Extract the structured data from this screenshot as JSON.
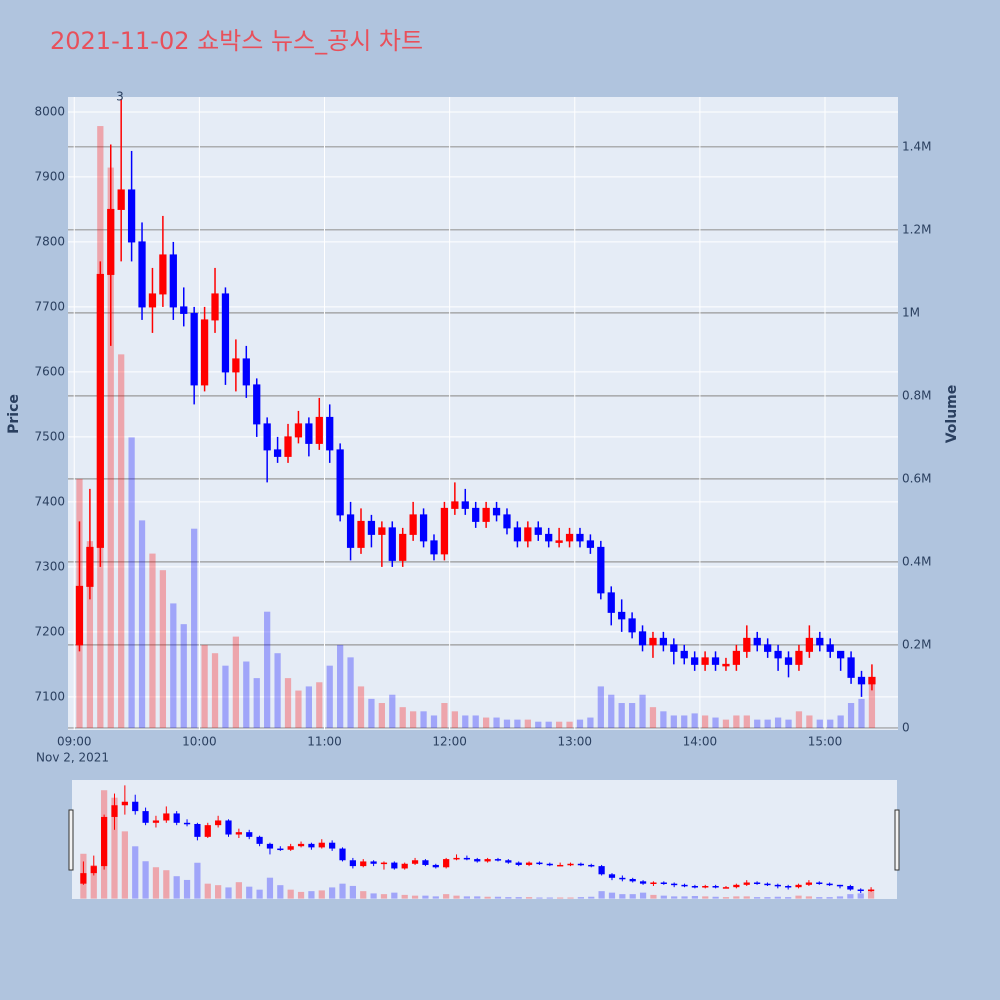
{
  "chart_data": {
    "type": "candlestick",
    "title": "2021-11-02 쇼박스 뉴스_공시 차트",
    "y_label": "Price",
    "y2_label": "Volume",
    "x_date_label": "Nov 2, 2021",
    "annotation": "3",
    "increasing_color": "#ff0000",
    "decreasing_color": "#0000ff",
    "grid": true,
    "x": [
      "09:00",
      "09:05",
      "09:10",
      "09:15",
      "09:20",
      "09:25",
      "09:30",
      "09:35",
      "09:40",
      "09:45",
      "09:50",
      "09:55",
      "10:00",
      "10:05",
      "10:10",
      "10:15",
      "10:20",
      "10:25",
      "10:30",
      "10:35",
      "10:40",
      "10:45",
      "10:50",
      "10:55",
      "11:00",
      "11:05",
      "11:10",
      "11:15",
      "11:20",
      "11:25",
      "11:30",
      "11:35",
      "11:40",
      "11:45",
      "11:50",
      "11:55",
      "12:00",
      "12:05",
      "12:10",
      "12:15",
      "12:20",
      "12:25",
      "12:30",
      "12:35",
      "12:40",
      "12:45",
      "12:50",
      "12:55",
      "13:00",
      "13:05",
      "13:10",
      "13:15",
      "13:20",
      "13:25",
      "13:30",
      "13:35",
      "13:40",
      "13:45",
      "13:50",
      "13:55",
      "14:00",
      "14:05",
      "14:10",
      "14:15",
      "14:20",
      "14:25",
      "14:30",
      "14:35",
      "14:40",
      "14:45",
      "14:50",
      "14:55",
      "15:00",
      "15:05",
      "15:10",
      "15:15",
      "15:20"
    ],
    "open": [
      7180,
      7270,
      7330,
      7750,
      7850,
      7880,
      7800,
      7700,
      7720,
      7780,
      7700,
      7690,
      7580,
      7680,
      7720,
      7600,
      7620,
      7580,
      7520,
      7480,
      7470,
      7500,
      7520,
      7490,
      7530,
      7480,
      7380,
      7330,
      7370,
      7350,
      7360,
      7310,
      7350,
      7380,
      7340,
      7320,
      7390,
      7400,
      7390,
      7370,
      7390,
      7380,
      7360,
      7340,
      7360,
      7350,
      7340,
      7340,
      7350,
      7340,
      7330,
      7260,
      7230,
      7220,
      7200,
      7180,
      7190,
      7180,
      7170,
      7160,
      7150,
      7160,
      7150,
      7150,
      7170,
      7190,
      7180,
      7170,
      7160,
      7150,
      7170,
      7190,
      7180,
      7170,
      7160,
      7130,
      7120
    ],
    "high": [
      7370,
      7420,
      7770,
      7950,
      8020,
      7940,
      7830,
      7760,
      7840,
      7800,
      7730,
      7700,
      7700,
      7760,
      7730,
      7650,
      7640,
      7590,
      7530,
      7500,
      7520,
      7540,
      7530,
      7560,
      7550,
      7490,
      7400,
      7390,
      7380,
      7370,
      7370,
      7360,
      7400,
      7390,
      7350,
      7400,
      7430,
      7420,
      7400,
      7400,
      7400,
      7390,
      7370,
      7370,
      7370,
      7360,
      7360,
      7360,
      7360,
      7350,
      7340,
      7270,
      7250,
      7230,
      7210,
      7200,
      7200,
      7190,
      7180,
      7170,
      7170,
      7170,
      7160,
      7180,
      7210,
      7200,
      7190,
      7180,
      7170,
      7180,
      7210,
      7200,
      7190,
      7170,
      7170,
      7140,
      7150
    ],
    "low": [
      7170,
      7250,
      7300,
      7640,
      7770,
      7770,
      7680,
      7660,
      7700,
      7680,
      7670,
      7550,
      7570,
      7660,
      7580,
      7570,
      7560,
      7500,
      7430,
      7460,
      7460,
      7490,
      7470,
      7480,
      7460,
      7370,
      7310,
      7320,
      7330,
      7300,
      7300,
      7300,
      7340,
      7330,
      7310,
      7310,
      7380,
      7380,
      7360,
      7360,
      7370,
      7350,
      7330,
      7330,
      7340,
      7330,
      7330,
      7330,
      7330,
      7320,
      7250,
      7210,
      7200,
      7190,
      7170,
      7160,
      7170,
      7150,
      7150,
      7140,
      7140,
      7140,
      7140,
      7140,
      7160,
      7170,
      7160,
      7140,
      7130,
      7140,
      7160,
      7170,
      7160,
      7140,
      7120,
      7100,
      7110
    ],
    "close": [
      7270,
      7330,
      7750,
      7850,
      7880,
      7800,
      7700,
      7720,
      7780,
      7700,
      7690,
      7580,
      7680,
      7720,
      7600,
      7620,
      7580,
      7520,
      7480,
      7470,
      7500,
      7520,
      7490,
      7530,
      7480,
      7380,
      7330,
      7370,
      7350,
      7360,
      7310,
      7350,
      7380,
      7340,
      7320,
      7390,
      7400,
      7390,
      7370,
      7390,
      7380,
      7360,
      7340,
      7360,
      7350,
      7340,
      7340,
      7350,
      7340,
      7330,
      7260,
      7230,
      7220,
      7200,
      7180,
      7190,
      7180,
      7170,
      7160,
      7150,
      7160,
      7150,
      7150,
      7170,
      7190,
      7180,
      7170,
      7160,
      7150,
      7170,
      7190,
      7180,
      7170,
      7160,
      7130,
      7120,
      7130
    ],
    "volume": [
      600000,
      450000,
      1450000,
      1350000,
      900000,
      700000,
      500000,
      420000,
      380000,
      300000,
      250000,
      480000,
      200000,
      180000,
      150000,
      220000,
      160000,
      120000,
      280000,
      180000,
      120000,
      90000,
      100000,
      110000,
      150000,
      200000,
      170000,
      100000,
      70000,
      60000,
      80000,
      50000,
      40000,
      40000,
      30000,
      60000,
      40000,
      30000,
      30000,
      25000,
      25000,
      20000,
      20000,
      20000,
      15000,
      15000,
      15000,
      15000,
      20000,
      25000,
      100000,
      80000,
      60000,
      60000,
      80000,
      50000,
      40000,
      30000,
      30000,
      35000,
      30000,
      25000,
      20000,
      30000,
      30000,
      20000,
      20000,
      25000,
      20000,
      40000,
      30000,
      20000,
      20000,
      30000,
      60000,
      70000,
      120000
    ],
    "xlim": [
      "08:57",
      "15:35"
    ],
    "xticks": [
      "09:00",
      "10:00",
      "11:00",
      "12:00",
      "13:00",
      "14:00",
      "15:00"
    ],
    "ylim": [
      7049,
      8023
    ],
    "yticks": [
      7100,
      7200,
      7300,
      7400,
      7500,
      7600,
      7700,
      7800,
      7900,
      8000
    ],
    "y2lim": [
      -5000,
      1520000
    ],
    "y2ticks": [
      0,
      {
        "value": 200000,
        "label": "0.2M"
      },
      {
        "value": 400000,
        "label": "0.4M"
      },
      {
        "value": 600000,
        "label": "0.6M"
      },
      {
        "value": 800000,
        "label": "0.8M"
      },
      {
        "value": 1000000,
        "label": "1M"
      },
      {
        "value": 1200000,
        "label": "1.2M"
      },
      {
        "value": 1400000,
        "label": "1.4M"
      }
    ]
  }
}
